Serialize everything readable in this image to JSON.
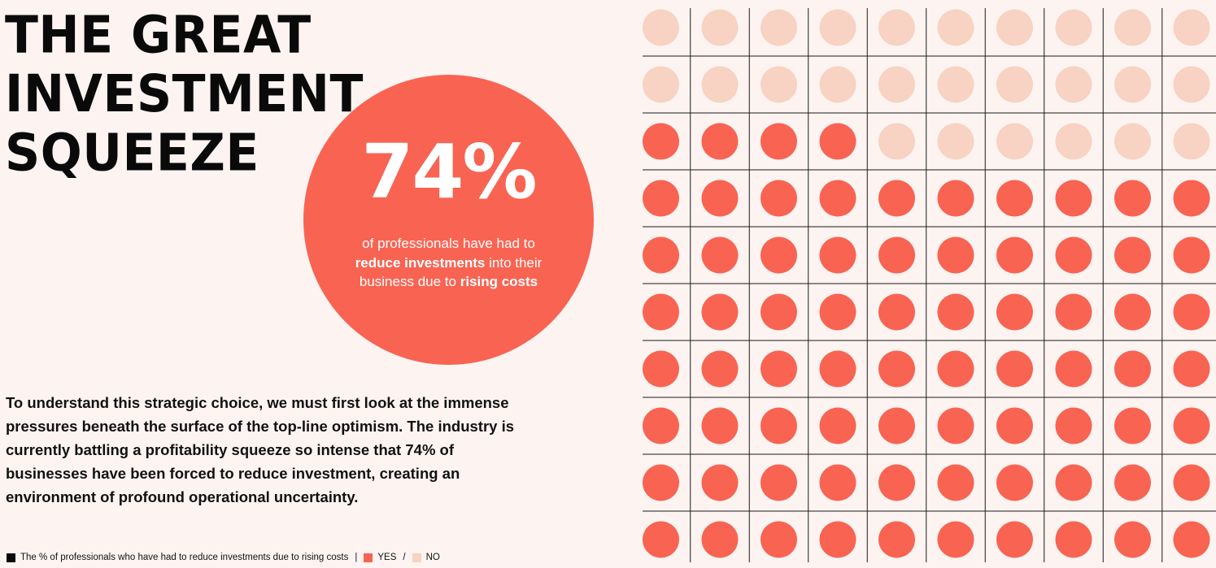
{
  "title_lines": [
    "THE GREAT",
    "INVESTMENT",
    "SQUEEZE"
  ],
  "stat": {
    "value": "74%",
    "caption_part1": "of professionals have had to",
    "caption_bold1": "reduce investments",
    "caption_part2": "into their business due to",
    "caption_bold2": "rising costs"
  },
  "body_text": "To understand this strategic choice, we must first look at the immense pressures beneath the surface of the top-line optimism. The industry is currently battling a profitability squeeze so intense that 74% of businesses have been forced to reduce investment, creating an environment of profound operational uncertainty.",
  "legend": {
    "description": "The % of professionals who have had to reduce investments due to rising costs",
    "yes_label": "YES",
    "no_label": "NO",
    "separator": "/"
  },
  "colors": {
    "yes": "#f96352",
    "no": "#f8d2c2",
    "grid": "#1a1a1a",
    "background": "#fdf4f2"
  },
  "chart_data": {
    "type": "waffle",
    "rows": 10,
    "columns": 10,
    "series": [
      {
        "name": "YES",
        "value": 74
      },
      {
        "name": "NO",
        "value": 26
      }
    ],
    "layout_order": "filled from bottom row upward, left to right"
  }
}
